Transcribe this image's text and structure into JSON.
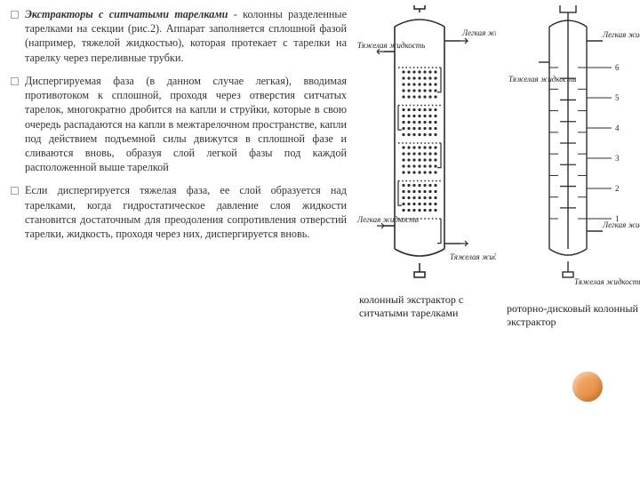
{
  "text": {
    "bullets": [
      {
        "lead": "Экстракторы с ситчатыми тарелками",
        "rest": " - колонны разделенные тарелками на секции (рис.2). Аппарат заполняется сплошной фазой (например, тяжелой жидкостью), которая протекает с тарелки на тарелку через переливные трубки."
      },
      {
        "lead": "",
        "rest": "Диспергируемая фаза (в данном случае легкая), вводимая противотоком к сплошной, проходя через отверстия ситчатых тарелок, многократно дробится на капли и струйки, которые в свою очередь распадаются на капли в межтарелочном пространстве, капли под действием подъемной силы движутся в сплошной фазе и сливаются вновь, образуя слой легкой фазы под каждой расположенной выше тарелкой"
      },
      {
        "lead": "",
        "rest": "Если диспергируется тяжелая фаза, ее слой образуется над тарелками, когда гидростатическое давление слоя жидкости становится достаточным для преодоления сопротивления отверстий тарелки, жидкость, проходя через них, диспергируется вновь."
      }
    ]
  },
  "figures": {
    "left": {
      "caption": "колонный экстрактор с ситчатыми тарелками",
      "labels": {
        "top_right": "Легкая жидкость",
        "top_left": "Тяжелая жидкость",
        "bottom_left": "Легкая жидкость",
        "bottom_right": "Тяжелая жидкость"
      },
      "style": {
        "stroke": "#2d2d2d",
        "fill": "#ffffff",
        "tray_count": 5,
        "body_width": 56,
        "body_height": 240,
        "top_pipe_h": 22,
        "bottom_pipe_h": 22,
        "stroke_width": 1.6
      }
    },
    "right": {
      "caption": "роторно-дисковый колонный экстрактор",
      "labels": {
        "top_right": "Легкая жидкость",
        "mid_left": "Тяжелая жидкость",
        "bottom_right": "Легкая жидкость",
        "bottom_out": "Тяжелая жидкость"
      },
      "numbered": [
        "1",
        "2",
        "3",
        "4",
        "5",
        "6"
      ],
      "style": {
        "stroke": "#2d2d2d",
        "fill": "#ffffff",
        "disc_count": 8,
        "body_width": 42,
        "body_height": 240,
        "stroke_width": 1.4
      }
    }
  },
  "colors": {
    "text": "#333335",
    "bullet_border": "#9aa6b0",
    "accent_circle_light": "#f7b27a",
    "accent_circle_dark": "#e38330",
    "background": "#ffffff"
  }
}
